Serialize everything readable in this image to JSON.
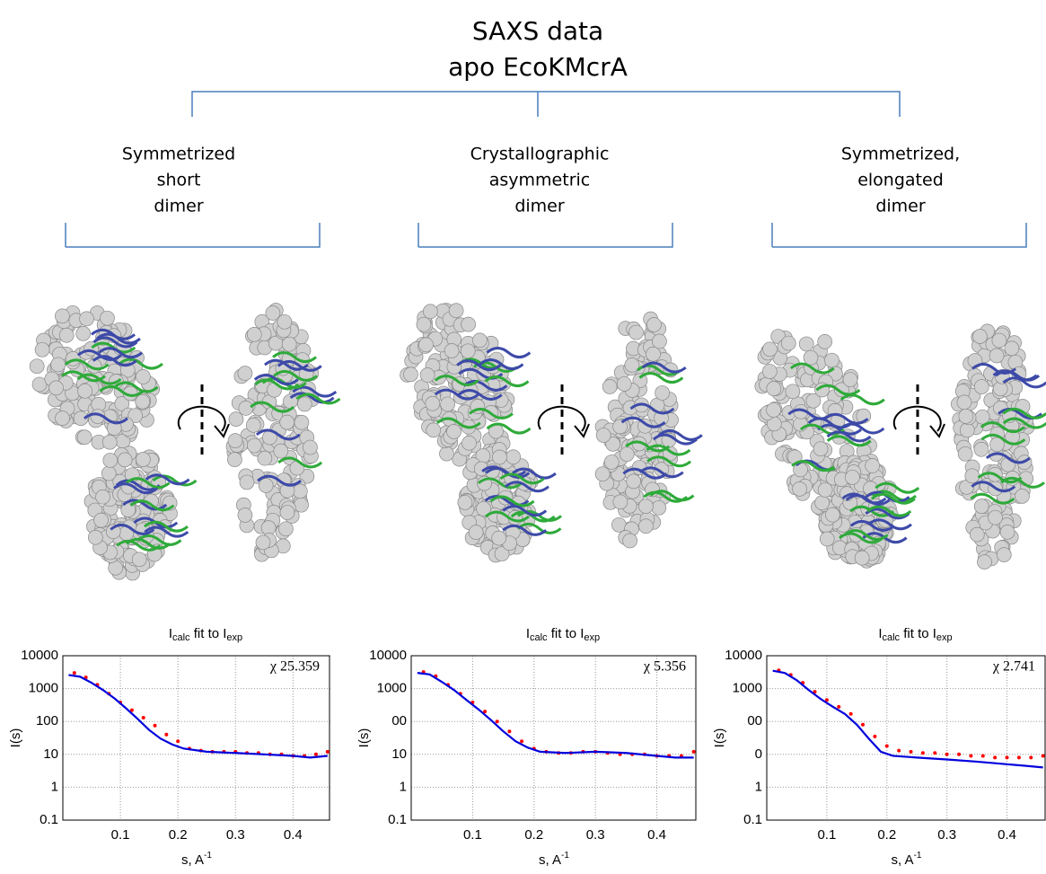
{
  "figure": {
    "title": [
      "SAXS data",
      "apo EcoKMcrA"
    ],
    "models": [
      [
        "Symmetrized",
        "short",
        "dimer"
      ],
      [
        "Crystallographic",
        "asymmetric",
        "dimer"
      ],
      [
        "Symmetrized,",
        "elongated",
        "dimer"
      ]
    ]
  },
  "chart_data": [
    {
      "type": "line",
      "title": [
        "I",
        "calc",
        " fit to I",
        "exp"
      ],
      "annotation": "χ 25.359",
      "x_label": [
        "s, A",
        "-1"
      ],
      "y_label": "I(s)",
      "log_y": true,
      "grid": true,
      "xlim": [
        0,
        0.465
      ],
      "xticks": [
        0.1,
        0.2,
        0.3,
        0.4
      ],
      "ylim": [
        0.1,
        10000
      ],
      "yticks": [
        {
          "value": 0.1,
          "label": "0.1"
        },
        1,
        10,
        100,
        1000,
        10000
      ],
      "series": [
        {
          "color": "#ff0000",
          "mode": "markers",
          "x": [
            0.02,
            0.04,
            0.06,
            0.08,
            0.1,
            0.12,
            0.14,
            0.16,
            0.18,
            0.2,
            0.22,
            0.24,
            0.26,
            0.28,
            0.3,
            0.32,
            0.34,
            0.36,
            0.38,
            0.4,
            0.42,
            0.44,
            0.46
          ],
          "values": [
            3000,
            2200,
            1300,
            700,
            380,
            220,
            130,
            75,
            40,
            25,
            15,
            13,
            12,
            12,
            12,
            11,
            11,
            10,
            10,
            9,
            9,
            10,
            12
          ]
        },
        {
          "color": "#0000dd",
          "mode": "lines",
          "x": [
            0.01,
            0.03,
            0.05,
            0.07,
            0.09,
            0.11,
            0.13,
            0.15,
            0.17,
            0.19,
            0.21,
            0.25,
            0.3,
            0.35,
            0.4,
            0.43,
            0.46
          ],
          "values": [
            2600,
            2300,
            1500,
            900,
            500,
            250,
            120,
            55,
            30,
            20,
            15,
            12,
            11,
            10,
            9,
            8,
            9
          ]
        }
      ]
    },
    {
      "type": "line",
      "title": [
        "I",
        "calc",
        " fit to I",
        "exp"
      ],
      "annotation": "χ 5.356",
      "x_label": [
        "s, A",
        "-1"
      ],
      "y_label": "I(s)",
      "log_y": true,
      "grid": true,
      "xlim": [
        0,
        0.465
      ],
      "xticks": [
        0.1,
        0.2,
        0.3,
        0.4
      ],
      "ylim": [
        0.1,
        10000
      ],
      "yticks": [
        {
          "value": 0.1,
          "label": "0.1"
        },
        1,
        10,
        {
          "value": 100,
          "label": "00"
        },
        1000,
        10000
      ],
      "series": [
        {
          "color": "#ff0000",
          "mode": "markers",
          "x": [
            0.02,
            0.04,
            0.06,
            0.08,
            0.1,
            0.12,
            0.14,
            0.16,
            0.18,
            0.2,
            0.22,
            0.24,
            0.26,
            0.28,
            0.3,
            0.32,
            0.34,
            0.36,
            0.38,
            0.4,
            0.42,
            0.44,
            0.46
          ],
          "values": [
            3200,
            2400,
            1300,
            700,
            380,
            200,
            100,
            50,
            25,
            15,
            12,
            11,
            11,
            12,
            12,
            11,
            10,
            10,
            10,
            9,
            9,
            9,
            12
          ]
        },
        {
          "color": "#0000dd",
          "mode": "lines",
          "x": [
            0.01,
            0.03,
            0.05,
            0.07,
            0.09,
            0.11,
            0.13,
            0.15,
            0.17,
            0.19,
            0.21,
            0.25,
            0.3,
            0.35,
            0.4,
            0.43,
            0.46
          ],
          "values": [
            3000,
            2700,
            1600,
            900,
            450,
            230,
            110,
            50,
            25,
            16,
            12,
            11,
            12,
            11,
            9,
            8,
            8
          ]
        }
      ]
    },
    {
      "type": "line",
      "title": [
        "I",
        "calc",
        " fit to I",
        "exp"
      ],
      "annotation": "χ 2.741",
      "x_label": [
        "s, A",
        "-1"
      ],
      "y_label": "I(s)",
      "log_y": true,
      "grid": true,
      "xlim": [
        0,
        0.465
      ],
      "xticks": [
        0.1,
        0.2,
        0.3,
        0.4
      ],
      "ylim": [
        0.1,
        10000
      ],
      "yticks": [
        {
          "value": 0.1,
          "label": "0.1"
        },
        1,
        {
          "value": 10,
          "label": "0"
        },
        {
          "value": 100,
          "label": "00"
        },
        1000,
        10000
      ],
      "series": [
        {
          "color": "#ff0000",
          "mode": "markers",
          "x": [
            0.02,
            0.04,
            0.06,
            0.08,
            0.1,
            0.12,
            0.14,
            0.16,
            0.18,
            0.2,
            0.22,
            0.24,
            0.26,
            0.28,
            0.3,
            0.32,
            0.34,
            0.36,
            0.38,
            0.4,
            0.42,
            0.44,
            0.46
          ],
          "values": [
            3600,
            2600,
            1500,
            800,
            450,
            280,
            170,
            80,
            35,
            18,
            13,
            12,
            11,
            11,
            10,
            10,
            9,
            9,
            8,
            8,
            8,
            8,
            9
          ]
        },
        {
          "color": "#0000dd",
          "mode": "lines",
          "x": [
            0.01,
            0.03,
            0.05,
            0.07,
            0.09,
            0.11,
            0.13,
            0.15,
            0.17,
            0.19,
            0.21,
            0.25,
            0.3,
            0.35,
            0.4,
            0.43,
            0.46
          ],
          "values": [
            3500,
            3000,
            1800,
            900,
            480,
            280,
            170,
            80,
            30,
            12,
            9,
            8,
            7,
            6,
            5,
            4.5,
            4
          ]
        }
      ]
    }
  ]
}
